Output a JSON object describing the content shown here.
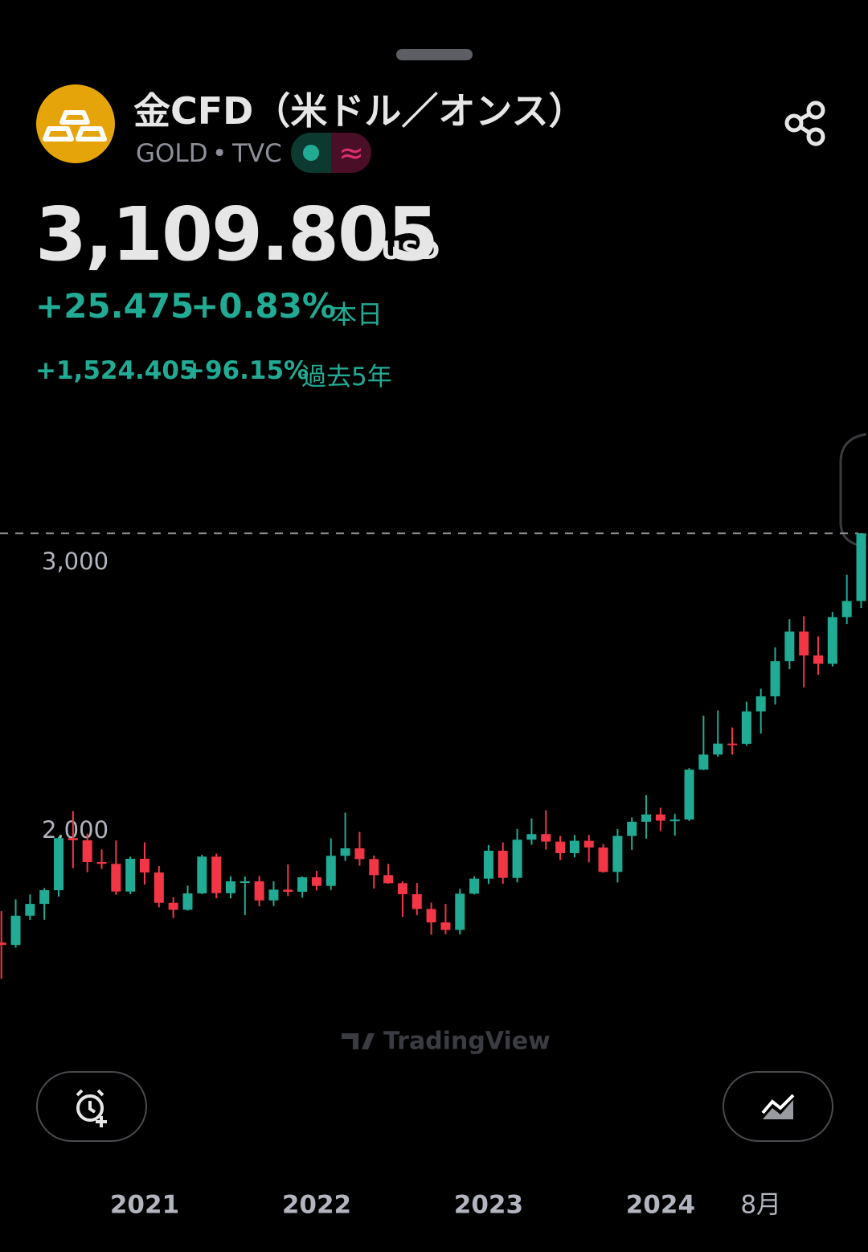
{
  "header": {
    "title": "金CFD（米ドル／オンス）",
    "symbol": "GOLD",
    "separator": "•",
    "exchange": "TVC",
    "market_status_icon": "≈"
  },
  "quote": {
    "price": "3,109.805",
    "currency": "USD",
    "change": "+25.475",
    "change_percent": "+0.83%",
    "period": "本日",
    "change_5y": "+1,524.405",
    "change_percent_5y": "+96.15%",
    "period_5y": "過去5年"
  },
  "watermark": "TradingView",
  "chart_data": {
    "type": "candlestick",
    "categories": [
      null,
      null,
      null,
      null,
      null,
      null,
      null,
      null,
      null,
      null,
      "2021",
      null,
      null,
      null,
      null,
      null,
      null,
      null,
      null,
      null,
      null,
      null,
      "2022",
      null,
      null,
      null,
      null,
      null,
      null,
      null,
      null,
      null,
      null,
      null,
      "2023",
      null,
      null,
      null,
      null,
      null,
      null,
      null,
      null,
      null,
      null,
      null,
      "2024",
      null,
      null,
      null,
      null,
      null,
      null,
      "8月",
      null,
      null,
      null,
      null,
      null,
      null,
      null
    ],
    "open": [
      1586,
      1577,
      1686,
      1730,
      1781,
      1975,
      1967,
      1886,
      1879,
      1776,
      1898,
      1847,
      1734,
      1708,
      1769,
      1906,
      1770,
      1814,
      1814,
      1743,
      1783,
      1775,
      1829,
      1797,
      1909,
      1937,
      1897,
      1837,
      1807,
      1766,
      1711,
      1661,
      1633,
      1768,
      1824,
      1928,
      1827,
      1969,
      1990,
      1962,
      1919,
      1965,
      1940,
      1849,
      1983,
      2036,
      2063,
      2040,
      2044,
      2230,
      2286,
      2327,
      2326,
      2447,
      2503,
      2634,
      2744,
      2655,
      2624,
      2798,
      2858
    ],
    "high": [
      1703,
      1747,
      1765,
      1789,
      1981,
      2075,
      1992,
      1933,
      1966,
      1906,
      1959,
      1871,
      1755,
      1798,
      1913,
      1917,
      1833,
      1832,
      1834,
      1814,
      1877,
      1832,
      1853,
      1974,
      2070,
      1998,
      1910,
      1879,
      1814,
      1808,
      1735,
      1730,
      1786,
      1833,
      1949,
      1959,
      2009,
      2048,
      2079,
      1983,
      1987,
      1987,
      1953,
      2009,
      2052,
      2135,
      2088,
      2065,
      2236,
      2431,
      2450,
      2387,
      2483,
      2531,
      2685,
      2790,
      2801,
      2726,
      2817,
      2956,
      3111
    ],
    "low": [
      1451,
      1567,
      1670,
      1671,
      1757,
      1863,
      1848,
      1860,
      1764,
      1766,
      1802,
      1717,
      1677,
      1705,
      1766,
      1751,
      1751,
      1688,
      1721,
      1722,
      1759,
      1753,
      1780,
      1782,
      1890,
      1872,
      1787,
      1805,
      1681,
      1688,
      1615,
      1617,
      1616,
      1765,
      1804,
      1805,
      1810,
      1950,
      1932,
      1893,
      1903,
      1885,
      1846,
      1810,
      1931,
      1973,
      2001,
      1984,
      2039,
      2228,
      2278,
      2286,
      2319,
      2364,
      2472,
      2604,
      2536,
      2583,
      2614,
      2772,
      2832
    ],
    "close": [
      1577,
      1686,
      1730,
      1781,
      1975,
      1967,
      1886,
      1879,
      1776,
      1898,
      1847,
      1734,
      1708,
      1769,
      1906,
      1770,
      1814,
      1814,
      1743,
      1783,
      1775,
      1829,
      1797,
      1909,
      1937,
      1897,
      1837,
      1807,
      1766,
      1711,
      1661,
      1633,
      1768,
      1824,
      1928,
      1827,
      1969,
      1990,
      1962,
      1919,
      1965,
      1940,
      1849,
      1983,
      2036,
      2063,
      2040,
      2044,
      2230,
      2286,
      2327,
      2326,
      2447,
      2503,
      2634,
      2744,
      2655,
      2624,
      2798,
      2858,
      3109.805
    ],
    "up_color": "#22ab94",
    "down_color": "#f23645",
    "ylim": [
      1323,
      3479
    ],
    "yticks": [
      {
        "value": 2000,
        "label": "2,000"
      },
      {
        "value": 3000,
        "label": "3,000"
      }
    ],
    "last_price_line": true
  }
}
